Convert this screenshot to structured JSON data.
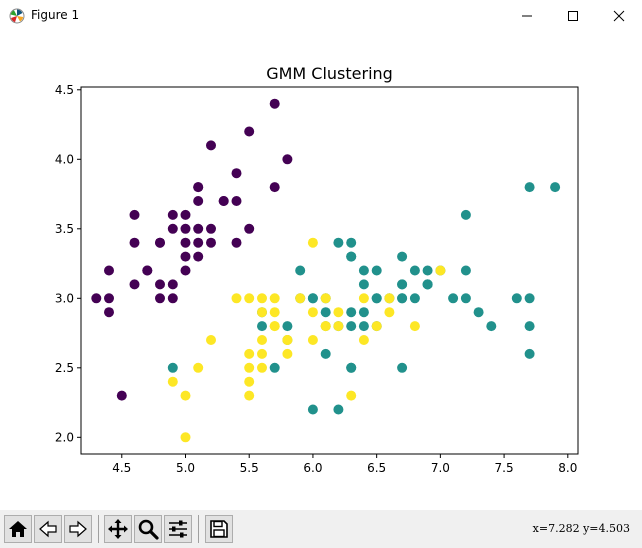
{
  "window": {
    "title": "Figure 1",
    "buttons": [
      "minimize",
      "maximize",
      "close"
    ]
  },
  "toolbar": {
    "buttons": [
      {
        "name": "home-button",
        "icon": "home-icon"
      },
      {
        "name": "back-button",
        "icon": "back-arrow-icon"
      },
      {
        "name": "forward-button",
        "icon": "forward-arrow-icon"
      },
      {
        "name": "pan-button",
        "icon": "pan-move-icon"
      },
      {
        "name": "zoom-button",
        "icon": "zoom-magnifier-icon"
      },
      {
        "name": "configure-subplots-button",
        "icon": "sliders-icon"
      },
      {
        "name": "save-button",
        "icon": "save-disk-icon"
      }
    ],
    "coords": "x=7.282 y=4.503"
  },
  "chart_data": {
    "type": "scatter",
    "title": "GMM Clustering",
    "xlabel": "",
    "ylabel": "",
    "xlim": [
      4.18,
      8.08
    ],
    "ylim": [
      1.88,
      4.52
    ],
    "xticks": [
      "4.5",
      "5.0",
      "5.5",
      "6.0",
      "6.5",
      "7.0",
      "7.5",
      "8.0"
    ],
    "yticks": [
      "2.0",
      "2.5",
      "3.0",
      "3.5",
      "4.0",
      "4.5"
    ],
    "grid": false,
    "colors": {
      "cluster0": "#440154",
      "cluster1": "#21918c",
      "cluster2": "#fde725"
    },
    "series": [
      {
        "color": "#440154",
        "points": [
          [
            5.1,
            3.5
          ],
          [
            4.9,
            3.0
          ],
          [
            4.7,
            3.2
          ],
          [
            4.6,
            3.1
          ],
          [
            5.0,
            3.6
          ],
          [
            5.4,
            3.9
          ],
          [
            4.6,
            3.4
          ],
          [
            5.0,
            3.4
          ],
          [
            4.4,
            2.9
          ],
          [
            4.9,
            3.1
          ],
          [
            5.4,
            3.7
          ],
          [
            4.8,
            3.4
          ],
          [
            4.8,
            3.0
          ],
          [
            4.3,
            3.0
          ],
          [
            5.8,
            4.0
          ],
          [
            5.7,
            4.4
          ],
          [
            5.1,
            3.8
          ],
          [
            5.7,
            3.8
          ],
          [
            5.4,
            3.4
          ],
          [
            5.1,
            3.7
          ],
          [
            4.6,
            3.6
          ],
          [
            5.1,
            3.3
          ],
          [
            4.8,
            3.1
          ],
          [
            5.0,
            3.2
          ],
          [
            5.2,
            3.5
          ],
          [
            5.2,
            3.4
          ],
          [
            4.7,
            3.2
          ],
          [
            5.2,
            4.1
          ],
          [
            5.5,
            4.2
          ],
          [
            5.0,
            3.3
          ],
          [
            4.4,
            3.2
          ],
          [
            4.5,
            2.3
          ],
          [
            4.4,
            3.0
          ],
          [
            5.0,
            3.5
          ],
          [
            5.3,
            3.7
          ],
          [
            4.9,
            3.6
          ],
          [
            5.5,
            3.5
          ],
          [
            5.1,
            3.4
          ],
          [
            5.1,
            3.8
          ],
          [
            5.3,
            3.7
          ],
          [
            4.8,
            3.4
          ],
          [
            4.9,
            3.5
          ]
        ]
      },
      {
        "color": "#21918c",
        "points": [
          [
            7.0,
            3.2
          ],
          [
            6.4,
            3.2
          ],
          [
            6.9,
            3.1
          ],
          [
            6.5,
            2.8
          ],
          [
            6.3,
            3.3
          ],
          [
            6.1,
            2.8
          ],
          [
            5.6,
            2.9
          ],
          [
            6.7,
            3.1
          ],
          [
            6.1,
            2.9
          ],
          [
            6.3,
            2.5
          ],
          [
            6.4,
            2.9
          ],
          [
            6.6,
            3.0
          ],
          [
            6.7,
            3.0
          ],
          [
            6.3,
            3.4
          ],
          [
            6.0,
            2.2
          ],
          [
            6.2,
            2.2
          ],
          [
            6.4,
            2.8
          ],
          [
            6.4,
            3.1
          ],
          [
            6.0,
            3.0
          ],
          [
            6.9,
            3.1
          ],
          [
            6.7,
            3.1
          ],
          [
            6.9,
            3.2
          ],
          [
            5.8,
            2.7
          ],
          [
            6.8,
            3.2
          ],
          [
            6.7,
            3.3
          ],
          [
            6.7,
            3.0
          ],
          [
            6.3,
            2.5
          ],
          [
            6.5,
            3.0
          ],
          [
            6.2,
            3.4
          ],
          [
            5.9,
            3.0
          ],
          [
            6.3,
            3.3
          ],
          [
            7.1,
            3.0
          ],
          [
            6.3,
            2.9
          ],
          [
            7.6,
            3.0
          ],
          [
            4.9,
            2.5
          ],
          [
            7.3,
            2.9
          ],
          [
            6.7,
            2.5
          ],
          [
            7.2,
            3.6
          ],
          [
            6.5,
            3.2
          ],
          [
            5.7,
            2.5
          ],
          [
            5.8,
            2.8
          ],
          [
            7.7,
            3.8
          ],
          [
            7.7,
            2.6
          ],
          [
            7.7,
            2.8
          ],
          [
            7.2,
            3.2
          ],
          [
            7.2,
            3.0
          ],
          [
            7.4,
            2.8
          ],
          [
            7.9,
            3.8
          ],
          [
            7.7,
            3.0
          ],
          [
            6.1,
            2.6
          ],
          [
            6.0,
            3.0
          ],
          [
            6.9,
            3.1
          ],
          [
            6.8,
            3.0
          ],
          [
            6.2,
            2.8
          ],
          [
            5.9,
            3.2
          ],
          [
            5.6,
            2.8
          ],
          [
            6.1,
            3.0
          ],
          [
            6.3,
            2.8
          ],
          [
            6.5,
            3.0
          ]
        ]
      },
      {
        "color": "#fde725",
        "points": [
          [
            5.5,
            2.3
          ],
          [
            5.7,
            2.8
          ],
          [
            4.9,
            2.4
          ],
          [
            6.6,
            2.9
          ],
          [
            5.2,
            2.7
          ],
          [
            5.0,
            2.0
          ],
          [
            5.9,
            3.0
          ],
          [
            5.6,
            3.0
          ],
          [
            5.8,
            2.7
          ],
          [
            5.6,
            2.5
          ],
          [
            6.1,
            2.8
          ],
          [
            6.6,
            3.0
          ],
          [
            6.8,
            2.8
          ],
          [
            5.5,
            2.4
          ],
          [
            5.5,
            2.6
          ],
          [
            5.8,
            2.6
          ],
          [
            5.0,
            2.3
          ],
          [
            5.6,
            2.7
          ],
          [
            5.7,
            3.0
          ],
          [
            5.7,
            2.9
          ],
          [
            6.2,
            2.9
          ],
          [
            5.1,
            2.5
          ],
          [
            5.7,
            2.8
          ],
          [
            6.0,
            3.4
          ],
          [
            5.5,
            2.5
          ],
          [
            6.0,
            2.9
          ],
          [
            6.1,
            3.0
          ],
          [
            5.8,
            2.7
          ],
          [
            5.6,
            2.6
          ],
          [
            5.4,
            3.0
          ],
          [
            6.0,
            2.7
          ],
          [
            6.1,
            2.8
          ],
          [
            6.3,
            2.3
          ],
          [
            5.5,
            3.0
          ],
          [
            7.0,
            3.2
          ],
          [
            6.4,
            2.7
          ],
          [
            6.5,
            2.8
          ],
          [
            5.6,
            2.9
          ],
          [
            6.2,
            2.8
          ],
          [
            6.4,
            3.0
          ]
        ]
      }
    ]
  }
}
